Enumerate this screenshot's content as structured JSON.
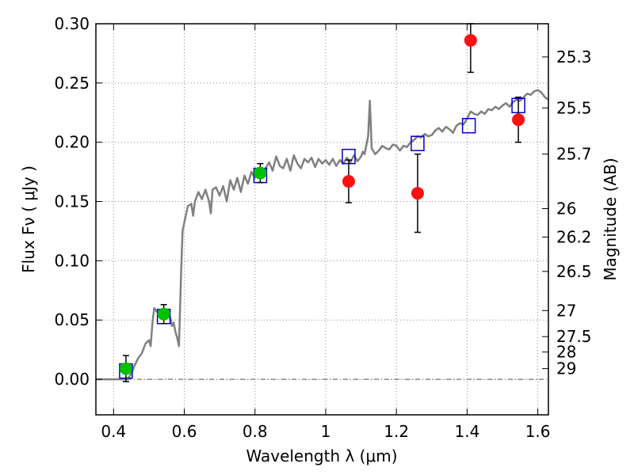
{
  "chart_data": {
    "type": "scatter",
    "xlabel": "Wavelength  λ (μm)",
    "ylabel": "Flux  Fν  ( μJy )",
    "y2label": "Magnitude (AB)",
    "xlim": [
      0.35,
      1.63
    ],
    "ylim": [
      -0.03,
      0.3
    ],
    "grid": true,
    "xticks": [
      0.4,
      0.6,
      0.8,
      1.0,
      1.2,
      1.4,
      1.6
    ],
    "xtick_labels": [
      "0.4",
      "0.6",
      "0.8",
      "1",
      "1.2",
      "1.4",
      "1.6"
    ],
    "yticks": [
      0.0,
      0.05,
      0.1,
      0.15,
      0.2,
      0.25,
      0.3
    ],
    "ytick_labels": [
      "0.00",
      "0.05",
      "0.10",
      "0.15",
      "0.20",
      "0.25",
      "0.30"
    ],
    "mag_ticks": [
      {
        "label": "25.3",
        "flux": 0.272
      },
      {
        "label": "25.5",
        "flux": 0.229
      },
      {
        "label": "25.7",
        "flux": 0.19
      },
      {
        "label": "26",
        "flux": 0.144
      },
      {
        "label": "26.2",
        "flux": 0.12
      },
      {
        "label": "26.5",
        "flux": 0.091
      },
      {
        "label": "27",
        "flux": 0.058
      },
      {
        "label": "27.5",
        "flux": 0.036
      },
      {
        "label": "28",
        "flux": 0.023
      },
      {
        "label": "29",
        "flux": 0.009
      }
    ],
    "zero_line": 0.0,
    "series": [
      {
        "marker": "line",
        "color": "#808080",
        "points": [
          [
            0.35,
            0.0
          ],
          [
            0.44,
            0.0
          ],
          [
            0.45,
            0.005
          ],
          [
            0.46,
            0.012
          ],
          [
            0.47,
            0.018
          ],
          [
            0.48,
            0.022
          ],
          [
            0.49,
            0.03
          ],
          [
            0.5,
            0.033
          ],
          [
            0.505,
            0.028
          ],
          [
            0.51,
            0.048
          ],
          [
            0.515,
            0.06
          ],
          [
            0.52,
            0.058
          ],
          [
            0.53,
            0.055
          ],
          [
            0.54,
            0.056
          ],
          [
            0.55,
            0.058
          ],
          [
            0.56,
            0.052
          ],
          [
            0.565,
            0.045
          ],
          [
            0.57,
            0.048
          ],
          [
            0.575,
            0.04
          ],
          [
            0.58,
            0.035
          ],
          [
            0.585,
            0.028
          ],
          [
            0.59,
            0.08
          ],
          [
            0.595,
            0.125
          ],
          [
            0.6,
            0.132
          ],
          [
            0.61,
            0.146
          ],
          [
            0.62,
            0.148
          ],
          [
            0.625,
            0.138
          ],
          [
            0.63,
            0.15
          ],
          [
            0.64,
            0.158
          ],
          [
            0.65,
            0.152
          ],
          [
            0.66,
            0.16
          ],
          [
            0.67,
            0.15
          ],
          [
            0.675,
            0.14
          ],
          [
            0.68,
            0.16
          ],
          [
            0.69,
            0.162
          ],
          [
            0.7,
            0.155
          ],
          [
            0.71,
            0.163
          ],
          [
            0.72,
            0.15
          ],
          [
            0.73,
            0.168
          ],
          [
            0.74,
            0.16
          ],
          [
            0.75,
            0.17
          ],
          [
            0.76,
            0.158
          ],
          [
            0.77,
            0.172
          ],
          [
            0.78,
            0.165
          ],
          [
            0.79,
            0.175
          ],
          [
            0.8,
            0.17
          ],
          [
            0.81,
            0.176
          ],
          [
            0.82,
            0.172
          ],
          [
            0.83,
            0.178
          ],
          [
            0.84,
            0.183
          ],
          [
            0.85,
            0.176
          ],
          [
            0.86,
            0.188
          ],
          [
            0.87,
            0.18
          ],
          [
            0.88,
            0.178
          ],
          [
            0.89,
            0.186
          ],
          [
            0.9,
            0.176
          ],
          [
            0.91,
            0.189
          ],
          [
            0.92,
            0.182
          ],
          [
            0.93,
            0.178
          ],
          [
            0.94,
            0.186
          ],
          [
            0.95,
            0.183
          ],
          [
            0.96,
            0.187
          ],
          [
            0.97,
            0.179
          ],
          [
            0.98,
            0.186
          ],
          [
            0.99,
            0.182
          ],
          [
            1.0,
            0.185
          ],
          [
            1.01,
            0.181
          ],
          [
            1.02,
            0.186
          ],
          [
            1.03,
            0.18
          ],
          [
            1.04,
            0.185
          ],
          [
            1.05,
            0.182
          ],
          [
            1.06,
            0.187
          ],
          [
            1.07,
            0.183
          ],
          [
            1.08,
            0.189
          ],
          [
            1.09,
            0.184
          ],
          [
            1.1,
            0.188
          ],
          [
            1.105,
            0.192
          ],
          [
            1.11,
            0.19
          ],
          [
            1.12,
            0.205
          ],
          [
            1.125,
            0.235
          ],
          [
            1.13,
            0.195
          ],
          [
            1.14,
            0.19
          ],
          [
            1.15,
            0.193
          ],
          [
            1.16,
            0.197
          ],
          [
            1.17,
            0.195
          ],
          [
            1.18,
            0.194
          ],
          [
            1.19,
            0.198
          ],
          [
            1.2,
            0.197
          ],
          [
            1.21,
            0.193
          ],
          [
            1.22,
            0.197
          ],
          [
            1.23,
            0.196
          ],
          [
            1.24,
            0.2
          ],
          [
            1.25,
            0.202
          ],
          [
            1.26,
            0.205
          ],
          [
            1.27,
            0.204
          ],
          [
            1.28,
            0.207
          ],
          [
            1.29,
            0.205
          ],
          [
            1.3,
            0.206
          ],
          [
            1.31,
            0.21
          ],
          [
            1.32,
            0.212
          ],
          [
            1.33,
            0.209
          ],
          [
            1.34,
            0.213
          ],
          [
            1.35,
            0.211
          ],
          [
            1.36,
            0.208
          ],
          [
            1.37,
            0.214
          ],
          [
            1.38,
            0.216
          ],
          [
            1.39,
            0.215
          ],
          [
            1.4,
            0.22
          ],
          [
            1.41,
            0.226
          ],
          [
            1.42,
            0.224
          ],
          [
            1.43,
            0.223
          ],
          [
            1.44,
            0.226
          ],
          [
            1.45,
            0.224
          ],
          [
            1.46,
            0.228
          ],
          [
            1.47,
            0.227
          ],
          [
            1.48,
            0.23
          ],
          [
            1.49,
            0.228
          ],
          [
            1.5,
            0.231
          ],
          [
            1.51,
            0.233
          ],
          [
            1.52,
            0.23
          ],
          [
            1.53,
            0.234
          ],
          [
            1.54,
            0.236
          ],
          [
            1.55,
            0.235
          ],
          [
            1.56,
            0.238
          ],
          [
            1.57,
            0.241
          ],
          [
            1.58,
            0.24
          ],
          [
            1.59,
            0.243
          ],
          [
            1.6,
            0.244
          ],
          [
            1.61,
            0.242
          ],
          [
            1.62,
            0.238
          ],
          [
            1.63,
            0.236
          ]
        ]
      },
      {
        "marker": "circle",
        "color": "#00c000",
        "points": [
          [
            0.435,
            0.009
          ],
          [
            0.542,
            0.055
          ],
          [
            0.815,
            0.174
          ]
        ],
        "yerr": [
          0.011,
          0.008,
          0.008
        ]
      },
      {
        "marker": "circle",
        "color": "#ff1010",
        "points": [
          [
            1.065,
            0.167
          ],
          [
            1.26,
            0.157
          ],
          [
            1.41,
            0.286
          ],
          [
            1.545,
            0.219
          ]
        ],
        "yerr": [
          0.018,
          0.033,
          0.027,
          0.019
        ]
      },
      {
        "marker": "square",
        "color": "#0000cc",
        "points": [
          [
            0.435,
            0.007
          ],
          [
            0.542,
            0.053
          ],
          [
            0.815,
            0.172
          ],
          [
            1.065,
            0.188
          ],
          [
            1.26,
            0.199
          ],
          [
            1.405,
            0.214
          ],
          [
            1.545,
            0.231
          ]
        ]
      }
    ]
  }
}
